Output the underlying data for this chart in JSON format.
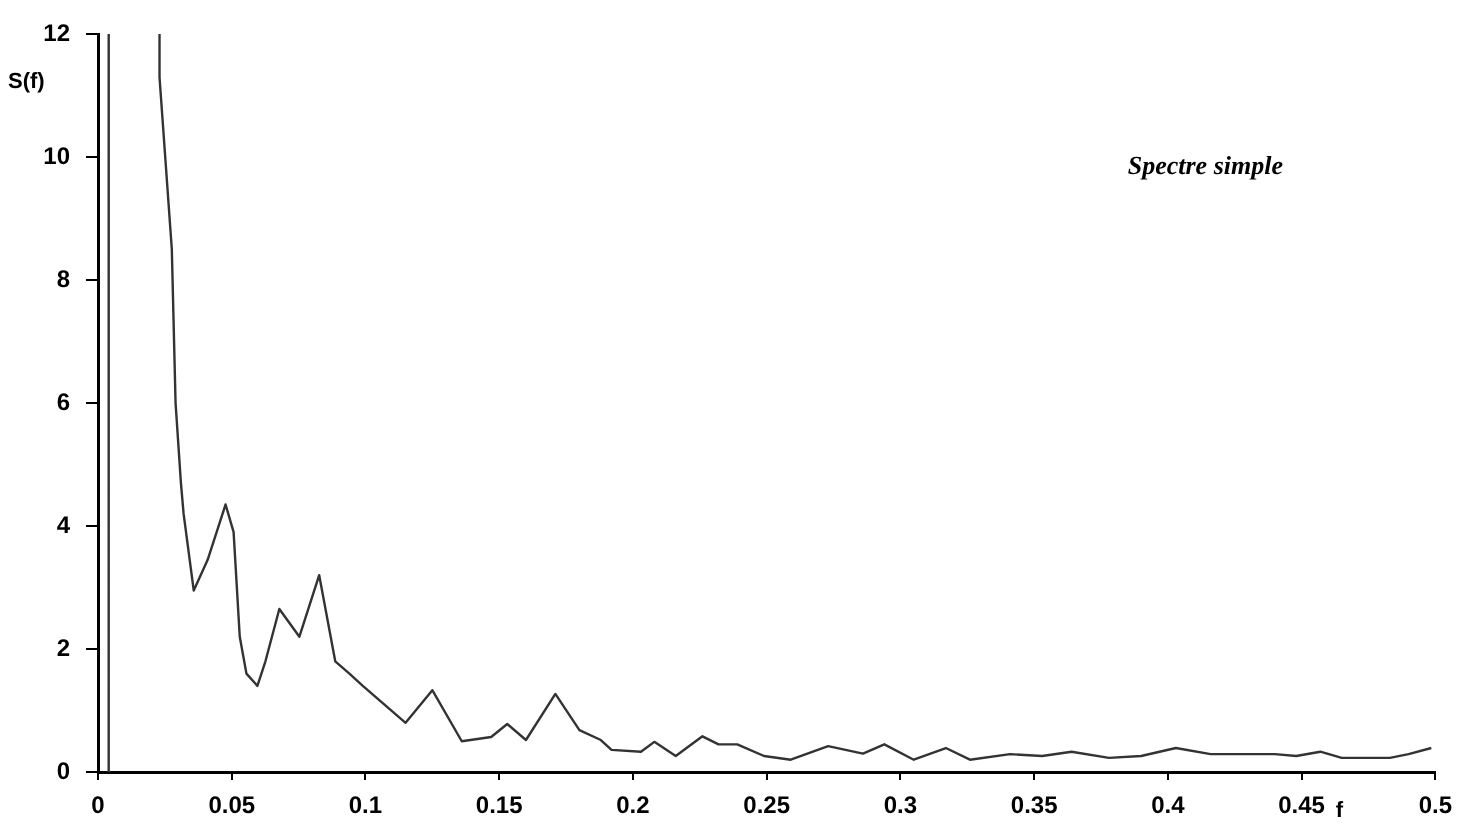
{
  "chart_data": {
    "type": "line",
    "xlabel": "f",
    "ylabel": "S(f)",
    "annotations": [
      "Spectre simple"
    ],
    "xlim": [
      0,
      0.5
    ],
    "xticks": [
      0,
      0.05,
      0.1,
      0.15,
      0.2,
      0.25,
      0.3,
      0.35,
      0.4,
      0.45,
      0.5
    ],
    "ylim": [
      0,
      12
    ],
    "yticks": [
      0,
      2,
      4,
      6,
      8,
      10,
      12
    ],
    "grid": false,
    "legend": false,
    "marker": "none",
    "line_style": "solid",
    "series": [
      {
        "color": "#333333",
        "x": [
          0.004,
          0.004,
          0.014,
          0.023,
          0.023,
          0.0276,
          0.029,
          0.031,
          0.032,
          0.0358,
          0.041,
          0.0477,
          0.0507,
          0.053,
          0.0555,
          0.0596,
          0.0626,
          0.0678,
          0.0753,
          0.0827,
          0.0887,
          0.094,
          0.099,
          0.115,
          0.125,
          0.136,
          0.147,
          0.153,
          0.16,
          0.171,
          0.18,
          0.188,
          0.192,
          0.203,
          0.208,
          0.216,
          0.226,
          0.232,
          0.239,
          0.249,
          0.259,
          0.273,
          0.286,
          0.294,
          0.305,
          0.317,
          0.326,
          0.341,
          0.353,
          0.364,
          0.378,
          0.39,
          0.403,
          0.416,
          0.428,
          0.44,
          0.448,
          0.457,
          0.465,
          0.483,
          0.49,
          0.4985
        ],
        "values": [
          0,
          12,
          null,
          12,
          11.3,
          8.5,
          6,
          4.7,
          4.2,
          2.95,
          3.45,
          4.35,
          3.9,
          2.2,
          1.6,
          1.4,
          1.8,
          2.65,
          2.2,
          3.2,
          1.8,
          1.6,
          1.4,
          0.8,
          1.33,
          0.5,
          0.57,
          0.78,
          0.52,
          1.27,
          0.68,
          0.52,
          0.36,
          0.33,
          0.49,
          0.26,
          0.58,
          0.45,
          0.45,
          0.26,
          0.2,
          0.42,
          0.3,
          0.45,
          0.2,
          0.39,
          0.2,
          0.29,
          0.26,
          0.33,
          0.23,
          0.26,
          0.39,
          0.29,
          0.29,
          0.29,
          0.26,
          0.33,
          0.23,
          0.23,
          0.29,
          0.39
        ]
      }
    ]
  }
}
